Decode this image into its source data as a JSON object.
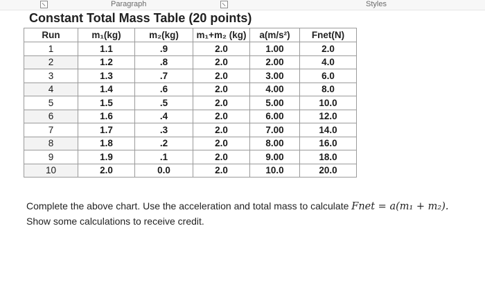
{
  "ribbon": {
    "paragraph_label": "Paragraph",
    "styles_label": "Styles"
  },
  "title": "Constant Total Mass Table (20 points)",
  "table": {
    "headers": [
      "Run",
      "m₁(kg)",
      "m₂(kg)",
      "m₁+m₂ (kg)",
      "a(m/s²)",
      "Fnet(N)"
    ],
    "rows": [
      [
        "1",
        "1.1",
        ".9",
        "2.0",
        "1.00",
        "2.0"
      ],
      [
        "2",
        "1.2",
        ".8",
        "2.0",
        "2.00",
        "4.0"
      ],
      [
        "3",
        "1.3",
        ".7",
        "2.0",
        "3.00",
        "6.0"
      ],
      [
        "4",
        "1.4",
        ".6",
        "2.0",
        "4.00",
        "8.0"
      ],
      [
        "5",
        "1.5",
        ".5",
        "2.0",
        "5.00",
        "10.0"
      ],
      [
        "6",
        "1.6",
        ".4",
        "2.0",
        "6.00",
        "12.0"
      ],
      [
        "7",
        "1.7",
        ".3",
        "2.0",
        "7.00",
        "14.0"
      ],
      [
        "8",
        "1.8",
        ".2",
        "2.0",
        "8.00",
        "16.0"
      ],
      [
        "9",
        "1.9",
        ".1",
        "2.0",
        "9.00",
        "18.0"
      ],
      [
        "10",
        "2.0",
        "0.0",
        "2.0",
        "10.0",
        "20.0"
      ]
    ]
  },
  "instructions": {
    "line1": "Complete the above chart. Use the acceleration and total mass to calculate ",
    "formula": "Fnet = a(m₁ + m₂).",
    "line2": "Show some calculations to receive credit."
  }
}
